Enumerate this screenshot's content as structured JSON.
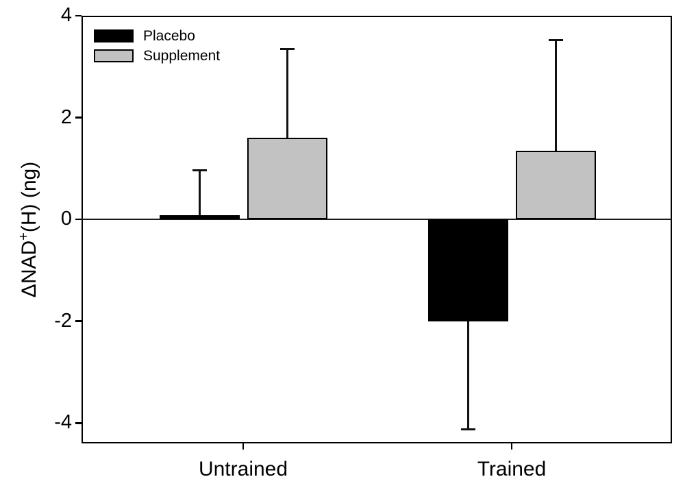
{
  "chart_data": {
    "type": "bar",
    "title": "",
    "categories": [
      "Untrained",
      "Trained"
    ],
    "series": [
      {
        "name": "Placebo",
        "fill": "#000000",
        "values": [
          0.08,
          -2.0
        ],
        "errors": [
          0.88,
          2.12
        ]
      },
      {
        "name": "Supplement",
        "fill": "#c2c2c2",
        "values": [
          1.6,
          1.35
        ],
        "errors": [
          1.75,
          2.17
        ]
      }
    ],
    "error_bar_direction": "away-from-zero",
    "xlabel": "",
    "ylabel": "ΔNAD⁺(H) (ng)",
    "ylabel_parts": {
      "pre": "ΔNAD",
      "sup": "+",
      "post": "(H) (ng)"
    },
    "yticks": [
      4,
      2,
      0,
      -2,
      -4
    ],
    "ylim": [
      -4.4,
      4
    ],
    "grid": false,
    "legend_position": "top-left",
    "legend_entries": [
      "Placebo",
      "Supplement"
    ],
    "colors": {
      "axis": "#000000",
      "placebo_fill": "#000000",
      "supplement_fill": "#c2c2c2",
      "background": "#ffffff"
    }
  }
}
